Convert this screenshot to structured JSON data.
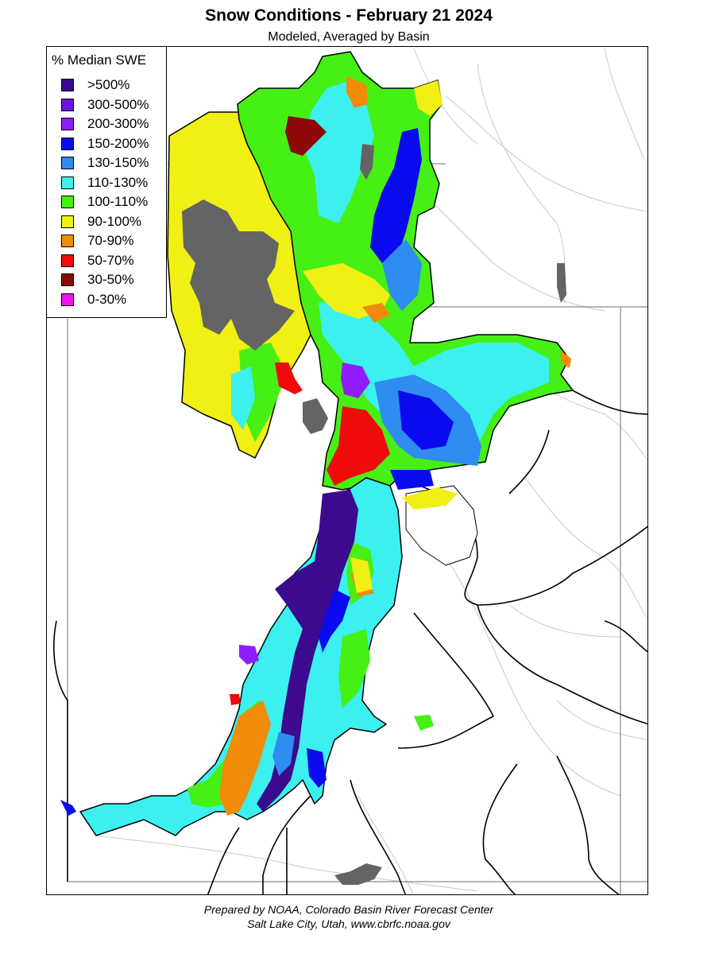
{
  "title": "Snow Conditions - February 21 2024",
  "subtitle": "Modeled, Averaged by Basin",
  "legend": {
    "title": "% Median SWE",
    "items": [
      {
        "label": ">500%",
        "color": "#3b0a8e"
      },
      {
        "label": "300-500%",
        "color": "#6a14e0"
      },
      {
        "label": "200-300%",
        "color": "#8f1eff"
      },
      {
        "label": "150-200%",
        "color": "#0a0af0"
      },
      {
        "label": "130-150%",
        "color": "#2f8cf0"
      },
      {
        "label": "110-130%",
        "color": "#3cf0f0"
      },
      {
        "label": "100-110%",
        "color": "#46f014"
      },
      {
        "label": "90-100%",
        "color": "#f0f014"
      },
      {
        "label": "70-90%",
        "color": "#f08c0a"
      },
      {
        "label": "50-70%",
        "color": "#f00a0a"
      },
      {
        "label": "30-50%",
        "color": "#8c0a0a"
      },
      {
        "label": "0-30%",
        "color": "#f014f0"
      }
    ]
  },
  "water_color": "#646464",
  "credit": {
    "line1": "Prepared by NOAA, Colorado Basin River Forecast Center",
    "line2": "Salt Lake City, Utah, www.cbrfc.noaa.gov"
  }
}
